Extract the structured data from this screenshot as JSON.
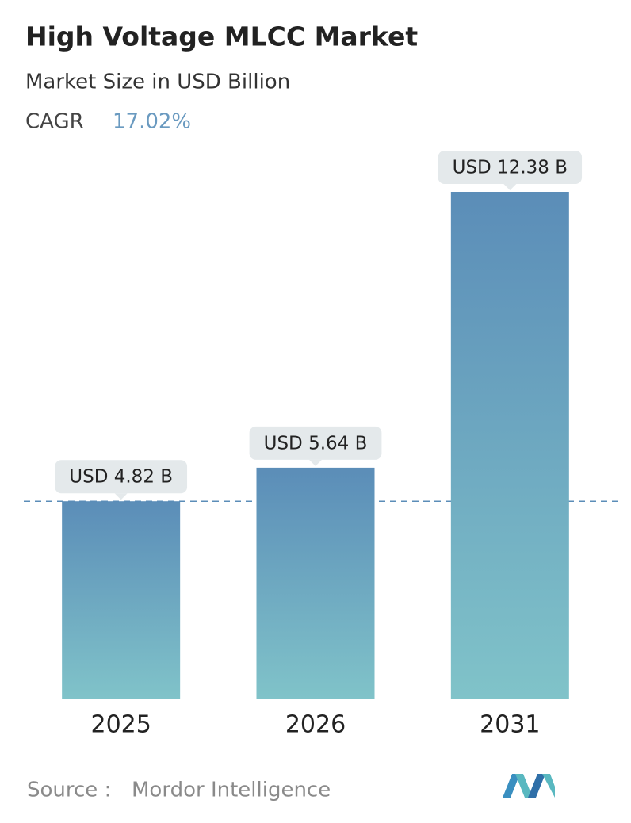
{
  "chart_data": {
    "type": "bar",
    "title": "High Voltage MLCC Market",
    "subtitle": "Market Size in USD Billion",
    "cagr_label": "CAGR",
    "cagr_value": "17.02%",
    "categories": [
      "2025",
      "2026",
      "2031"
    ],
    "values": [
      4.82,
      5.64,
      12.38
    ],
    "value_labels": [
      "USD 4.82 B",
      "USD 5.64 B",
      "USD 12.38 B"
    ],
    "color": "#5b8db8",
    "source_label": "Source :",
    "source": "Mordor Intelligence"
  }
}
